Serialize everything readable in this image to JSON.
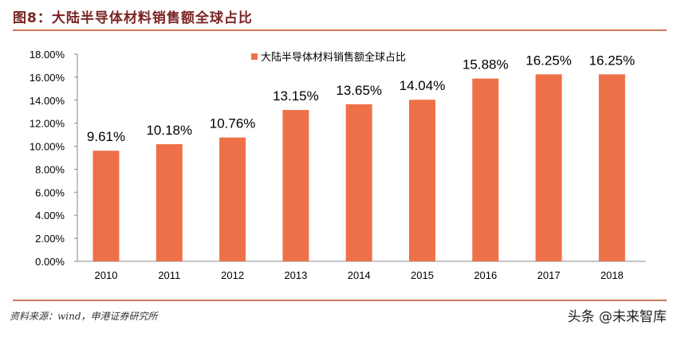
{
  "title": "图8：大陆半导体材料销售额全球占比",
  "source": "资料来源：wind，申港证券研究所",
  "watermark": "头条 @未来智库",
  "chart_data": {
    "type": "bar",
    "categories": [
      "2010",
      "2011",
      "2012",
      "2013",
      "2014",
      "2015",
      "2016",
      "2017",
      "2018"
    ],
    "series": [
      {
        "name": "大陆半导体材料销售额全球占比",
        "values": [
          9.61,
          10.18,
          10.76,
          13.15,
          13.65,
          14.04,
          15.88,
          16.25,
          16.25
        ],
        "labels": [
          "9.61%",
          "10.18%",
          "10.76%",
          "13.15%",
          "13.65%",
          "14.04%",
          "15.88%",
          "16.25%",
          "16.25%"
        ]
      }
    ],
    "ylim": [
      0,
      18
    ],
    "yticks": [
      "0.00%",
      "2.00%",
      "4.00%",
      "6.00%",
      "8.00%",
      "10.00%",
      "12.00%",
      "14.00%",
      "16.00%",
      "18.00%"
    ],
    "grid": false,
    "legend": "top",
    "color": "#ee7049"
  }
}
